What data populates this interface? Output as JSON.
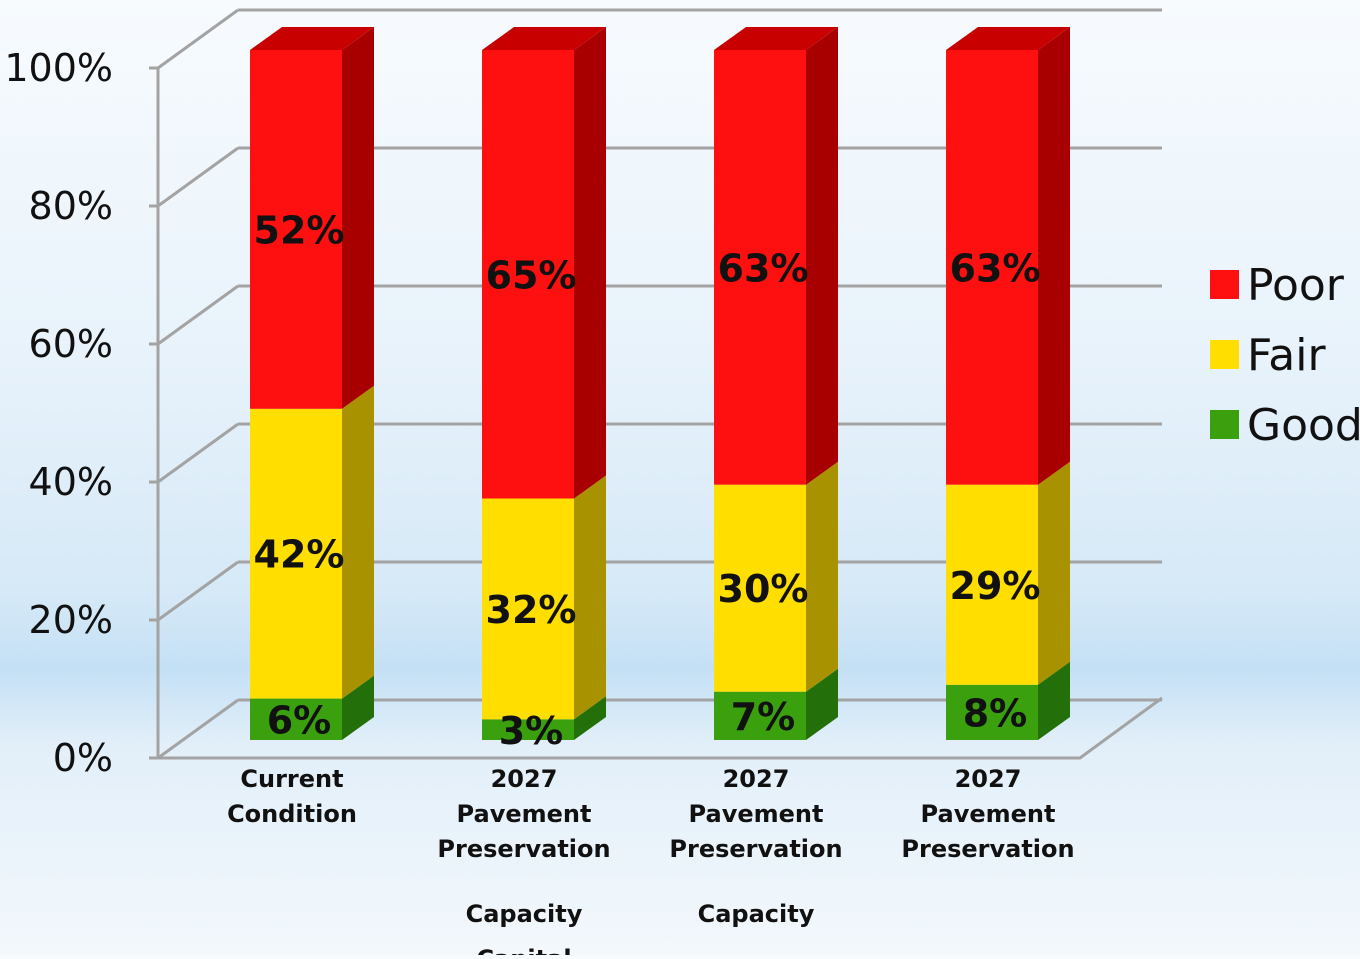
{
  "chart_data": {
    "type": "bar",
    "stacked": true,
    "three_d": true,
    "categories": [
      [
        "Current",
        "Condition"
      ],
      [
        "2027",
        "Pavement",
        "Preservation",
        "Capacity",
        "Capital"
      ],
      [
        "2027",
        "Pavement",
        "Preservation",
        "Capacity"
      ],
      [
        "2027",
        "Pavement",
        "Preservation"
      ]
    ],
    "series": [
      {
        "name": "Good",
        "values": [
          6,
          3,
          7,
          8
        ],
        "labels": [
          "6%",
          "3%",
          "7%",
          "8%"
        ],
        "color": "#3aa00e",
        "side_color": "#23700a",
        "top_color": "#2f8a0d"
      },
      {
        "name": "Fair",
        "values": [
          42,
          32,
          30,
          29
        ],
        "labels": [
          "42%",
          "32%",
          "30%",
          "29%"
        ],
        "color": "#ffde00",
        "side_color": "#a89200",
        "top_color": "#d6bb00"
      },
      {
        "name": "Poor",
        "values": [
          52,
          65,
          63,
          63
        ],
        "labels": [
          "52%",
          "65%",
          "63%",
          "63%"
        ],
        "color": "#ff1010",
        "side_color": "#a80000",
        "top_color": "#c80000"
      }
    ],
    "yticks": [
      "0%",
      "20%",
      "40%",
      "60%",
      "80%",
      "100%"
    ],
    "ylim": [
      0,
      100
    ],
    "grid": true,
    "legend": {
      "position": "right",
      "order": [
        "Poor",
        "Fair",
        "Good"
      ]
    }
  }
}
